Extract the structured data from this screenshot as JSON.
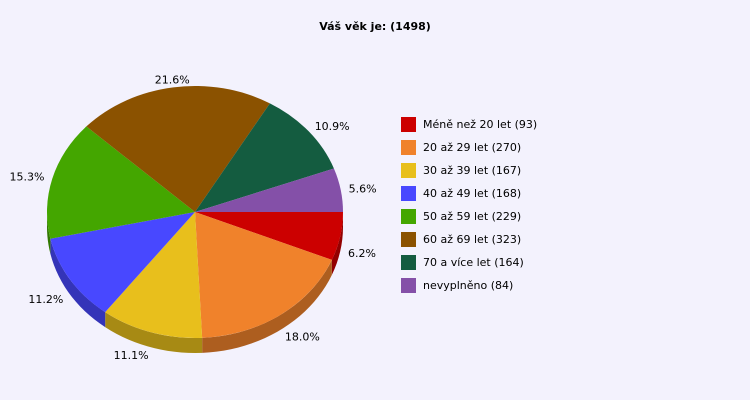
{
  "chart_data": {
    "type": "pie",
    "title": "Váš věk je: (1498)",
    "labels": [
      "Méně než 20 let (93)",
      "20 až 29 let (270)",
      "30 až 39 let (167)",
      "40 až 49 let (168)",
      "50 až 59 let (229)",
      "60 až 69 let (323)",
      "70 a více let (164)",
      "nevyplněno (84)"
    ],
    "counts": [
      93,
      270,
      167,
      168,
      229,
      323,
      164,
      84
    ],
    "percent_labels": [
      "6.2%",
      "18.0%",
      "11.1%",
      "11.2%",
      "15.3%",
      "21.6%",
      "10.9%",
      "5.6%"
    ],
    "colors": [
      "#cc0000",
      "#f0822b",
      "#e8bf1c",
      "#4848ff",
      "#44a600",
      "#8b5200",
      "#145c40",
      "#8450a8"
    ],
    "legend_placement": "right"
  }
}
